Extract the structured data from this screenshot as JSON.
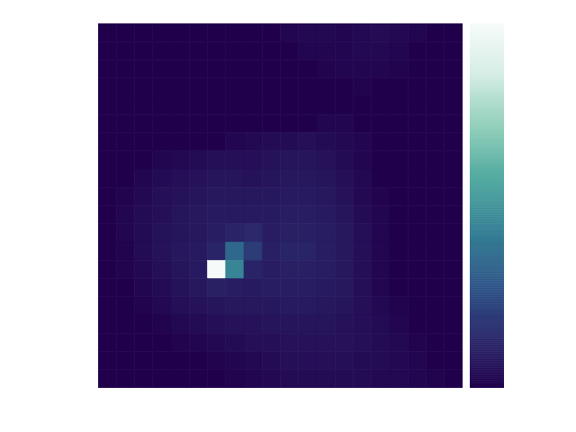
{
  "chart_data": {
    "type": "heatmap",
    "tick_labels": false,
    "xlim": [
      0,
      20
    ],
    "ylim": [
      0,
      20
    ],
    "color_range": [
      0,
      1
    ],
    "cells": [
      [
        0,
        0,
        0,
        0,
        0,
        0,
        0,
        0,
        0,
        0,
        0.02,
        0.03,
        0.03,
        0.02,
        0.03,
        0.04,
        0.03,
        0.02,
        0,
        0
      ],
      [
        0,
        0,
        0,
        0,
        0,
        0,
        0,
        0,
        0,
        0,
        0,
        0.02,
        0.02,
        0.02,
        0.03,
        0.03,
        0.02,
        0,
        0,
        0
      ],
      [
        0,
        0,
        0,
        0,
        0,
        0,
        0,
        0,
        0,
        0,
        0,
        0,
        0.01,
        0.02,
        0.02,
        0.02,
        0.01,
        0,
        0,
        0
      ],
      [
        0,
        0,
        0,
        0,
        0,
        0,
        0,
        0,
        0,
        0,
        0,
        0,
        0,
        0,
        0.01,
        0,
        0,
        0,
        0,
        0
      ],
      [
        0,
        0,
        0,
        0,
        0,
        0,
        0,
        0,
        0,
        0,
        0,
        0,
        0,
        0,
        0,
        0,
        0,
        0,
        0,
        0
      ],
      [
        0,
        0,
        0,
        0,
        0,
        0,
        0,
        0,
        0,
        0,
        0,
        0,
        0.02,
        0.02,
        0,
        0,
        0,
        0,
        0,
        0
      ],
      [
        0,
        0,
        0,
        0,
        0,
        0,
        0,
        0.02,
        0.03,
        0.04,
        0.04,
        0.05,
        0.04,
        0.03,
        0.02,
        0,
        0,
        0,
        0,
        0
      ],
      [
        0,
        0,
        0,
        0.02,
        0.03,
        0.04,
        0.05,
        0.05,
        0.05,
        0.06,
        0.07,
        0.07,
        0.06,
        0.04,
        0.02,
        0,
        0,
        0,
        0,
        0
      ],
      [
        0,
        0,
        0.02,
        0.04,
        0.05,
        0.06,
        0.07,
        0.07,
        0.06,
        0.07,
        0.08,
        0.08,
        0.07,
        0.05,
        0.03,
        0,
        0,
        0,
        0,
        0
      ],
      [
        0,
        0.01,
        0.03,
        0.05,
        0.06,
        0.07,
        0.08,
        0.08,
        0.08,
        0.08,
        0.09,
        0.09,
        0.08,
        0.06,
        0.03,
        0.01,
        0,
        0,
        0,
        0
      ],
      [
        0,
        0.02,
        0.04,
        0.05,
        0.07,
        0.08,
        0.09,
        0.09,
        0.09,
        0.09,
        0.1,
        0.1,
        0.09,
        0.07,
        0.04,
        0.02,
        0,
        0,
        0,
        0
      ],
      [
        0,
        0.02,
        0.04,
        0.06,
        0.07,
        0.08,
        0.1,
        0.12,
        0.14,
        0.1,
        0.11,
        0.11,
        0.1,
        0.08,
        0.05,
        0.02,
        0,
        0,
        0,
        0
      ],
      [
        0,
        0.01,
        0.04,
        0.06,
        0.08,
        0.09,
        0.12,
        0.35,
        0.2,
        0.11,
        0.12,
        0.12,
        0.1,
        0.08,
        0.05,
        0.02,
        0,
        0,
        0,
        0
      ],
      [
        0,
        0.01,
        0.03,
        0.05,
        0.07,
        0.09,
        1.0,
        0.45,
        0.12,
        0.1,
        0.11,
        0.11,
        0.1,
        0.08,
        0.05,
        0.02,
        0,
        0,
        0,
        0
      ],
      [
        0,
        0,
        0.02,
        0.04,
        0.06,
        0.08,
        0.11,
        0.1,
        0.09,
        0.1,
        0.1,
        0.1,
        0.09,
        0.08,
        0.05,
        0.02,
        0,
        0,
        0,
        0
      ],
      [
        0,
        0,
        0.01,
        0.03,
        0.05,
        0.06,
        0.07,
        0.08,
        0.08,
        0.08,
        0.09,
        0.09,
        0.08,
        0.07,
        0.05,
        0.03,
        0.01,
        0,
        0,
        0
      ],
      [
        0,
        0,
        0,
        0.01,
        0.03,
        0.04,
        0.05,
        0.06,
        0.06,
        0.07,
        0.07,
        0.07,
        0.07,
        0.06,
        0.05,
        0.04,
        0.02,
        0,
        0,
        0
      ],
      [
        0,
        0,
        0,
        0,
        0.01,
        0.02,
        0.03,
        0.04,
        0.05,
        0.05,
        0.06,
        0.06,
        0.06,
        0.06,
        0.05,
        0.04,
        0.03,
        0.01,
        0,
        0
      ],
      [
        0,
        0,
        0,
        0,
        0,
        0,
        0.01,
        0.02,
        0.03,
        0.04,
        0.05,
        0.05,
        0.05,
        0.05,
        0.04,
        0.04,
        0.03,
        0.02,
        0,
        0
      ],
      [
        0,
        0,
        0,
        0,
        0,
        0,
        0,
        0.01,
        0.02,
        0.03,
        0.04,
        0.04,
        0.04,
        0.04,
        0.04,
        0.03,
        0.03,
        0.02,
        0.01,
        0
      ]
    ]
  }
}
